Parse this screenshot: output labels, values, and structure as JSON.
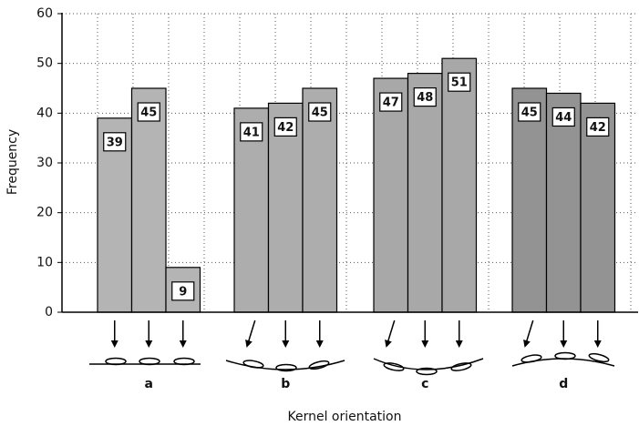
{
  "chart_data": {
    "type": "grouped_bar",
    "x_label": "Kernel orientation",
    "y_label": "Frequency",
    "categories": [
      "a",
      "b",
      "c",
      "d"
    ],
    "values": [
      [
        39,
        45,
        9
      ],
      [
        41,
        42,
        45
      ],
      [
        47,
        48,
        51
      ],
      [
        45,
        44,
        42
      ]
    ],
    "colors": [
      "#b4b4b4",
      "#adadad",
      "#a8a8a8",
      "#939393"
    ],
    "ylim": [
      0,
      60
    ],
    "yticks": [
      0,
      10,
      20,
      30,
      40,
      50,
      60
    ],
    "grid": true
  }
}
